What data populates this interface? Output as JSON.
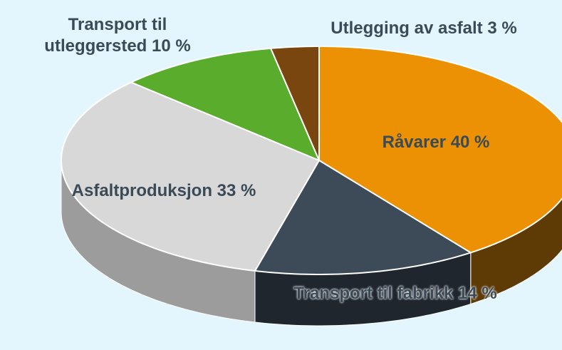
{
  "chart_data": {
    "type": "pie",
    "categories": [
      "Råvarer",
      "Transport til fabrikk",
      "Asfaltproduksjon",
      "Transport til utleggersted",
      "Utlegging av asfalt"
    ],
    "values": [
      40,
      14,
      33,
      10,
      3
    ],
    "value_labels": [
      "40 %",
      "14 %",
      "33 %",
      "10 %",
      "3 %"
    ],
    "colors": [
      "#ec9103",
      "#3d4b58",
      "#d8d8d8",
      "#5aad2c",
      "#7a4610"
    ],
    "side_colors": [
      "#5e3a05",
      "#1f262e",
      "#9c9c9c",
      "#3e7a1e",
      "#4a2a09"
    ],
    "background": "#e4f6fd"
  }
}
